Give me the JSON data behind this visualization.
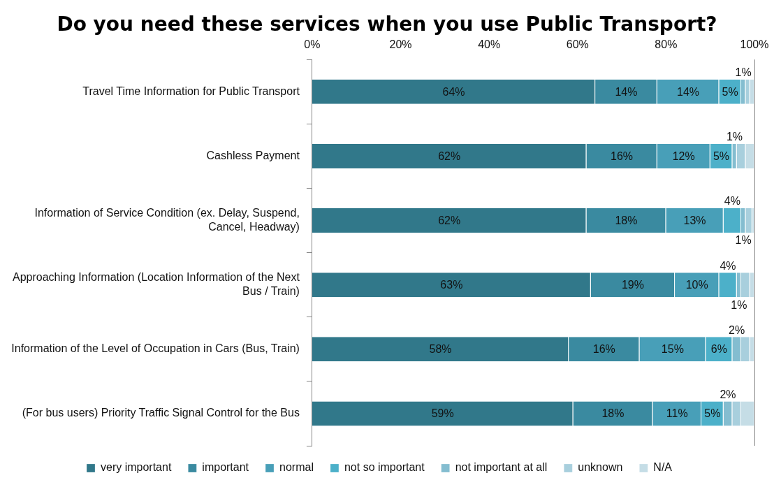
{
  "chart_data": {
    "type": "bar",
    "orientation": "horizontal",
    "stacked": true,
    "title": "Do you need these services when you use Public Transport?",
    "categories": [
      "Travel Time Information for Public Transport",
      "Cashless Payment",
      "Information of Service Condition (ex. Delay, Suspend, Cancel, Headway)",
      "Approaching Information (Location Information of the Next Bus / Train)",
      "Information of the Level of Occupation in Cars (Bus, Train)",
      "(For bus users) Priority Traffic Signal Control for the Bus"
    ],
    "series": [
      {
        "name": "very important",
        "color": "#31788a",
        "values": [
          64,
          62,
          62,
          63,
          58,
          59
        ],
        "value_labels": [
          "64%",
          "62%",
          "62%",
          "63%",
          "58%",
          "59%"
        ]
      },
      {
        "name": "important",
        "color": "#3a8aa0",
        "values": [
          14,
          16,
          18,
          19,
          16,
          18
        ],
        "value_labels": [
          "14%",
          "16%",
          "18%",
          "19%",
          "16%",
          "18%"
        ]
      },
      {
        "name": "normal",
        "color": "#489fb8",
        "values": [
          14,
          12,
          13,
          10,
          15,
          11
        ],
        "value_labels": [
          "14%",
          "12%",
          "13%",
          "10%",
          "15%",
          "11%"
        ]
      },
      {
        "name": "not so important",
        "color": "#4cb0c9",
        "values": [
          5,
          5,
          4,
          4,
          6,
          5
        ],
        "value_labels": [
          "5%",
          "5%",
          "4%",
          "4%",
          "6%",
          "5%"
        ]
      },
      {
        "name": "not important at all",
        "color": "#84bdd0",
        "values": [
          1,
          1,
          1,
          1,
          2,
          2
        ],
        "value_labels": [
          "1%",
          "1%",
          "1%",
          "1%",
          "2%",
          "2%"
        ]
      },
      {
        "name": "unknown",
        "color": "#a8cfdd",
        "values": [
          1,
          2,
          1.5,
          2,
          2,
          2
        ]
      },
      {
        "name": "N/A",
        "color": "#c5dde6",
        "values": [
          1,
          2,
          0.5,
          1,
          1,
          3
        ]
      }
    ],
    "xlim": [
      0,
      100
    ],
    "xticks": [
      {
        "value": 0,
        "label": "0%"
      },
      {
        "value": 20,
        "label": "20%"
      },
      {
        "value": 40,
        "label": "40%"
      },
      {
        "value": 60,
        "label": "60%"
      },
      {
        "value": 80,
        "label": "80%"
      },
      {
        "value": 100,
        "label": "100%"
      }
    ],
    "grid": false,
    "legend": "bottom"
  }
}
